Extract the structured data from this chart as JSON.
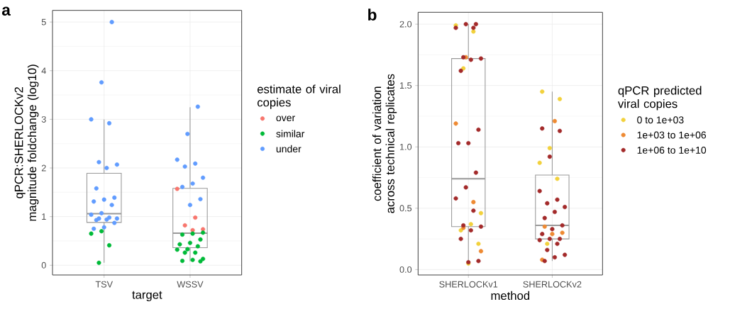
{
  "chart_data": [
    {
      "type": "box",
      "title": "a",
      "xlabel": "target",
      "ylabel": "qPCR:SHERLOCKv2 magnitude foldchange (log10)",
      "legend_title": "estimate of viral copies",
      "categories": [
        "TSV",
        "WSSV"
      ],
      "boxes": [
        {
          "low": 0.05,
          "q1": 0.88,
          "median": 1.06,
          "q3": 1.89,
          "high": 3.0
        },
        {
          "low": 0.08,
          "q1": 0.36,
          "median": 0.66,
          "q3": 1.58,
          "high": 3.25
        }
      ],
      "ylim": [
        -0.2,
        5.24
      ],
      "yticks": [
        0,
        1,
        2,
        3,
        4,
        5
      ],
      "grid": true,
      "legend": "right",
      "marker": "circle",
      "series": [
        {
          "type": "scatter",
          "name": "over",
          "color": "#f8766d",
          "x": [
            "WSSV",
            "WSSV",
            "WSSV",
            "WSSV",
            "WSSV"
          ],
          "values": [
            1.57,
            0.98,
            0.82,
            0.74,
            0.72
          ]
        },
        {
          "type": "scatter",
          "name": "similar",
          "color": "#00ba38",
          "x": [
            "TSV",
            "TSV",
            "TSV",
            "TSV",
            "WSSV",
            "WSSV",
            "WSSV",
            "WSSV",
            "WSSV",
            "WSSV",
            "WSSV",
            "WSSV",
            "WSSV",
            "WSSV",
            "WSSV",
            "WSSV",
            "WSSV",
            "WSSV",
            "WSSV"
          ],
          "values": [
            0.7,
            0.65,
            0.41,
            0.05,
            0.67,
            0.65,
            0.63,
            0.53,
            0.46,
            0.43,
            0.39,
            0.33,
            0.32,
            0.26,
            0.26,
            0.13,
            0.11,
            0.09,
            0.08
          ]
        },
        {
          "type": "scatter",
          "name": "under",
          "color": "#619cff",
          "x": [
            "TSV",
            "TSV",
            "TSV",
            "TSV",
            "TSV",
            "TSV",
            "TSV",
            "TSV",
            "TSV",
            "TSV",
            "TSV",
            "TSV",
            "TSV",
            "TSV",
            "TSV",
            "TSV",
            "TSV",
            "TSV",
            "TSV",
            "TSV",
            "TSV",
            "TSV",
            "WSSV",
            "WSSV",
            "WSSV",
            "WSSV",
            "WSSV",
            "WSSV",
            "WSSV",
            "WSSV",
            "WSSV",
            "WSSV"
          ],
          "values": [
            5.0,
            3.76,
            3.0,
            2.92,
            2.12,
            2.07,
            2.0,
            1.58,
            1.39,
            1.35,
            1.31,
            1.24,
            1.07,
            1.04,
            0.98,
            0.96,
            0.96,
            0.94,
            0.93,
            0.87,
            0.78,
            0.75,
            3.26,
            2.7,
            2.17,
            2.09,
            2.03,
            1.8,
            1.68,
            1.61,
            1.36,
            1.24
          ]
        }
      ]
    },
    {
      "type": "box",
      "title": "b",
      "xlabel": "method",
      "ylabel": "coefficient of variation across technical replicates",
      "legend_title": "qPCR predicted viral copies",
      "categories": [
        "SHERLOCKv1",
        "SHERLOCKv2"
      ],
      "boxes": [
        {
          "low": 0.05,
          "q1": 0.35,
          "median": 0.74,
          "q3": 1.72,
          "high": 2.0
        },
        {
          "low": 0.07,
          "q1": 0.25,
          "median": 0.36,
          "q3": 0.77,
          "high": 1.45
        }
      ],
      "ylim": [
        -0.044,
        2.097
      ],
      "yticks": [
        {
          "value": 0,
          "label": "0.0"
        },
        {
          "value": 0.5,
          "label": "0.5"
        },
        {
          "value": 1,
          "label": "1.0"
        },
        {
          "value": 1.5,
          "label": "1.5"
        },
        {
          "value": 2,
          "label": "2.0"
        }
      ],
      "grid": true,
      "legend": "right",
      "marker": "circle",
      "series": [
        {
          "type": "scatter",
          "name": "0 to 1e+03",
          "color": "#f2d13c",
          "x": [
            "SHERLOCKv1",
            "SHERLOCKv1",
            "SHERLOCKv1",
            "SHERLOCKv1",
            "SHERLOCKv1",
            "SHERLOCKv1",
            "SHERLOCKv1",
            "SHERLOCKv1",
            "SHERLOCKv2",
            "SHERLOCKv2",
            "SHERLOCKv2",
            "SHERLOCKv2",
            "SHERLOCKv2",
            "SHERLOCKv2"
          ],
          "values": [
            1.99,
            1.94,
            1.64,
            0.46,
            0.37,
            0.32,
            0.21,
            0.05,
            1.45,
            1.39,
            0.99,
            0.87,
            0.74,
            0.21
          ]
        },
        {
          "type": "scatter",
          "name": "1e+03 to 1e+06",
          "color": "#ee8a33",
          "x": [
            "SHERLOCKv1",
            "SHERLOCKv1",
            "SHERLOCKv1",
            "SHERLOCKv1",
            "SHERLOCKv1",
            "SHERLOCKv2",
            "SHERLOCKv2",
            "SHERLOCKv2",
            "SHERLOCKv2",
            "SHERLOCKv2"
          ],
          "values": [
            1.73,
            1.19,
            0.55,
            0.34,
            0.15,
            1.21,
            0.35,
            0.3,
            0.29,
            0.08
          ]
        },
        {
          "type": "scatter",
          "name": "1e+06 to 1e+10",
          "color": "#a32a2a",
          "x": [
            "SHERLOCKv1",
            "SHERLOCKv1",
            "SHERLOCKv1",
            "SHERLOCKv1",
            "SHERLOCKv1",
            "SHERLOCKv1",
            "SHERLOCKv1",
            "SHERLOCKv1",
            "SHERLOCKv1",
            "SHERLOCKv1",
            "SHERLOCKv1",
            "SHERLOCKv1",
            "SHERLOCKv1",
            "SHERLOCKv1",
            "SHERLOCKv1",
            "SHERLOCKv1",
            "SHERLOCKv1",
            "SHERLOCKv1",
            "SHERLOCKv1",
            "SHERLOCKv1",
            "SHERLOCKv1",
            "SHERLOCKv2",
            "SHERLOCKv2",
            "SHERLOCKv2",
            "SHERLOCKv2",
            "SHERLOCKv2",
            "SHERLOCKv2",
            "SHERLOCKv2",
            "SHERLOCKv2",
            "SHERLOCKv2",
            "SHERLOCKv2",
            "SHERLOCKv2",
            "SHERLOCKv2",
            "SHERLOCKv2",
            "SHERLOCKv2",
            "SHERLOCKv2",
            "SHERLOCKv2",
            "SHERLOCKv2",
            "SHERLOCKv2",
            "SHERLOCKv2",
            "SHERLOCKv2"
          ],
          "values": [
            2.0,
            2.0,
            1.97,
            1.97,
            1.73,
            1.72,
            1.71,
            1.62,
            1.14,
            1.03,
            1.03,
            0.79,
            0.67,
            0.58,
            0.48,
            0.36,
            0.35,
            0.32,
            0.25,
            0.07,
            0.06,
            1.15,
            1.13,
            0.92,
            0.64,
            0.57,
            0.54,
            0.51,
            0.47,
            0.42,
            0.36,
            0.33,
            0.29,
            0.25,
            0.25,
            0.24,
            0.21,
            0.16,
            0.12,
            0.1,
            0.07
          ]
        }
      ]
    }
  ]
}
